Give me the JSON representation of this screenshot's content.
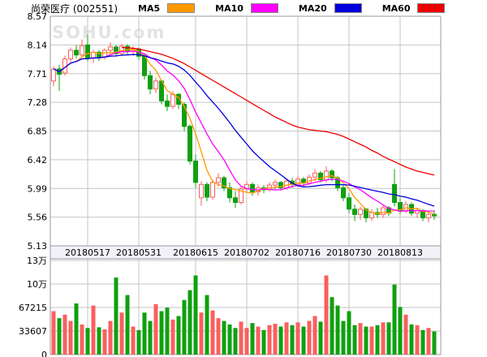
{
  "header": {
    "title": "尚荣医疗",
    "code": "(002551)",
    "legend": [
      {
        "label": "MA5",
        "color": "#ff9900"
      },
      {
        "label": "MA10",
        "color": "#ff00ff"
      },
      {
        "label": "MA20",
        "color": "#0000dd"
      },
      {
        "label": "MA60",
        "color": "#ee0000"
      }
    ]
  },
  "watermark": "SOHU.com",
  "price_axis": {
    "labels": [
      "8.57",
      "8.14",
      "7.71",
      "7.28",
      "6.85",
      "6.42",
      "5.99",
      "5.56",
      "5.13"
    ],
    "max": 8.57,
    "min": 5.13
  },
  "volume_axis": {
    "labels": [
      "13万",
      "10万",
      "67215",
      "33607",
      "0"
    ],
    "max": 134430
  },
  "date_axis": {
    "labels": [
      "20180517",
      "20180531",
      "20180615",
      "20180702",
      "20180716",
      "20180730",
      "20180813"
    ],
    "tick_indices": [
      6,
      15,
      25,
      34,
      43,
      52,
      61
    ]
  },
  "chart_data": {
    "type": "candlestick+volume",
    "title": "尚荣医疗 (002551)",
    "price_max": 8.57,
    "price_min": 5.13,
    "volume_max": 134430,
    "ma_periods": [
      5,
      10,
      20
    ],
    "ma60_start": 12,
    "ma60": [
      8.1,
      8.1,
      8.09,
      8.08,
      8.06,
      8.04,
      8.02,
      8.0,
      7.97,
      7.94,
      7.9,
      7.86,
      7.81,
      7.76,
      7.71,
      7.66,
      7.61,
      7.56,
      7.51,
      7.46,
      7.41,
      7.36,
      7.31,
      7.26,
      7.21,
      7.16,
      7.11,
      7.06,
      7.02,
      6.98,
      6.94,
      6.91,
      6.89,
      6.87,
      6.86,
      6.85,
      6.84,
      6.82,
      6.8,
      6.77,
      6.73,
      6.69,
      6.65,
      6.61,
      6.56,
      6.52,
      6.47,
      6.43,
      6.39,
      6.35,
      6.31,
      6.28,
      6.25,
      6.23,
      6.21,
      6.19
    ],
    "ohlc": [
      [
        7.6,
        7.82,
        7.52,
        7.78
      ],
      [
        7.78,
        7.84,
        7.45,
        7.7
      ],
      [
        7.72,
        7.98,
        7.68,
        7.93
      ],
      [
        7.93,
        8.1,
        7.88,
        8.06
      ],
      [
        8.06,
        8.14,
        7.94,
        7.99
      ],
      [
        7.99,
        8.22,
        7.96,
        8.13
      ],
      [
        8.14,
        8.3,
        7.9,
        7.94
      ],
      [
        7.94,
        8.07,
        7.87,
        8.03
      ],
      [
        8.03,
        8.06,
        7.9,
        7.96
      ],
      [
        7.96,
        8.09,
        7.92,
        8.06
      ],
      [
        8.06,
        8.18,
        8.0,
        8.11
      ],
      [
        8.11,
        8.14,
        7.96,
        8.01
      ],
      [
        8.01,
        8.16,
        7.97,
        8.12
      ],
      [
        8.12,
        8.15,
        7.99,
        8.04
      ],
      [
        8.04,
        8.12,
        7.98,
        8.08
      ],
      [
        8.08,
        8.1,
        7.92,
        7.97
      ],
      [
        7.97,
        8.0,
        7.62,
        7.68
      ],
      [
        7.68,
        7.75,
        7.4,
        7.48
      ],
      [
        7.48,
        7.65,
        7.42,
        7.6
      ],
      [
        7.6,
        7.62,
        7.25,
        7.3
      ],
      [
        7.3,
        7.4,
        7.15,
        7.22
      ],
      [
        7.22,
        7.45,
        7.18,
        7.4
      ],
      [
        7.4,
        7.42,
        7.18,
        7.25
      ],
      [
        7.25,
        7.28,
        6.85,
        6.92
      ],
      [
        6.92,
        6.95,
        6.35,
        6.4
      ],
      [
        6.4,
        6.5,
        6.0,
        6.08
      ],
      [
        5.85,
        6.1,
        5.73,
        6.05
      ],
      [
        6.05,
        6.08,
        5.8,
        5.86
      ],
      [
        5.86,
        6.12,
        5.82,
        6.08
      ],
      [
        6.08,
        6.22,
        6.02,
        6.15
      ],
      [
        6.15,
        6.18,
        5.95,
        6.0
      ],
      [
        6.0,
        6.08,
        5.78,
        5.85
      ],
      [
        5.85,
        5.95,
        5.7,
        5.78
      ],
      [
        5.78,
        6.02,
        5.75,
        5.98
      ],
      [
        5.98,
        6.1,
        5.92,
        6.05
      ],
      [
        6.05,
        6.08,
        5.88,
        5.94
      ],
      [
        5.94,
        6.05,
        5.88,
        6.0
      ],
      [
        6.0,
        6.04,
        5.92,
        5.97
      ],
      [
        5.97,
        6.08,
        5.94,
        6.04
      ],
      [
        6.04,
        6.12,
        5.98,
        6.08
      ],
      [
        6.08,
        6.1,
        5.96,
        6.0
      ],
      [
        6.0,
        6.14,
        5.97,
        6.1
      ],
      [
        6.1,
        6.15,
        6.0,
        6.05
      ],
      [
        6.05,
        6.18,
        6.02,
        6.13
      ],
      [
        6.13,
        6.16,
        6.02,
        6.07
      ],
      [
        6.07,
        6.2,
        6.04,
        6.16
      ],
      [
        6.16,
        6.28,
        6.1,
        6.22
      ],
      [
        6.22,
        6.25,
        6.08,
        6.12
      ],
      [
        6.12,
        6.32,
        6.08,
        6.25
      ],
      [
        6.25,
        6.28,
        6.1,
        6.15
      ],
      [
        6.15,
        6.18,
        5.95,
        6.0
      ],
      [
        6.0,
        6.05,
        5.8,
        5.85
      ],
      [
        5.85,
        5.92,
        5.62,
        5.68
      ],
      [
        5.68,
        5.75,
        5.5,
        5.6
      ],
      [
        5.6,
        5.72,
        5.52,
        5.68
      ],
      [
        5.68,
        5.7,
        5.48,
        5.55
      ],
      [
        5.55,
        5.68,
        5.5,
        5.63
      ],
      [
        5.63,
        5.7,
        5.55,
        5.6
      ],
      [
        5.6,
        5.75,
        5.55,
        5.7
      ],
      [
        5.7,
        5.73,
        5.58,
        5.62
      ],
      [
        6.05,
        6.28,
        5.72,
        5.78
      ],
      [
        5.78,
        5.85,
        5.6,
        5.65
      ],
      [
        5.65,
        5.8,
        5.62,
        5.75
      ],
      [
        5.75,
        5.78,
        5.58,
        5.62
      ],
      [
        5.62,
        5.7,
        5.55,
        5.66
      ],
      [
        5.66,
        5.68,
        5.5,
        5.55
      ],
      [
        5.55,
        5.65,
        5.48,
        5.6
      ],
      [
        5.6,
        5.66,
        5.52,
        5.58
      ]
    ],
    "volume": [
      62000,
      52000,
      57000,
      48000,
      73000,
      43000,
      38000,
      70000,
      39000,
      36000,
      48000,
      110000,
      60000,
      85000,
      40000,
      35000,
      60000,
      48000,
      72000,
      62000,
      67000,
      50000,
      55000,
      78000,
      92000,
      113000,
      60000,
      85000,
      63000,
      52000,
      48000,
      43000,
      38000,
      47000,
      38000,
      45000,
      40000,
      35000,
      42000,
      44000,
      40000,
      46000,
      42000,
      46000,
      40000,
      48000,
      55000,
      47000,
      113000,
      82000,
      70000,
      48000,
      62000,
      42000,
      45000,
      40000,
      40000,
      42000,
      46000,
      46000,
      100000,
      68000,
      57000,
      43000,
      42000,
      35000,
      38000,
      33000
    ],
    "colors": {
      "up": "#fa5f5f",
      "down": "#0fa00f",
      "ma5": "#ff9900",
      "ma10": "#ff00ff",
      "ma20": "#0000dd",
      "ma60": "#ee0000",
      "grid": "#c6c6c6",
      "border": "#9a9aa2",
      "date_band_bg": "#f1f1f7",
      "watermark": "#e3e3e3",
      "text": "#000000"
    }
  }
}
